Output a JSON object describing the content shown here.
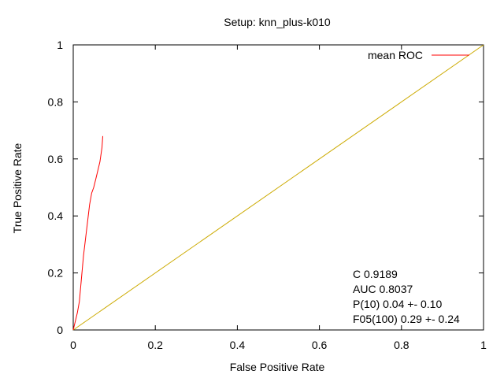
{
  "chart_data": {
    "type": "line",
    "title": "Setup: knn_plus-k010",
    "xlabel": "False Positive Rate",
    "ylabel": "True Positive Rate",
    "xlim": [
      0,
      1
    ],
    "ylim": [
      0,
      1
    ],
    "xticks": [
      "0",
      "0.2",
      "0.4",
      "0.6",
      "0.8",
      "1"
    ],
    "yticks": [
      "0",
      "0.2",
      "0.4",
      "0.6",
      "0.8",
      "1"
    ],
    "grid": false,
    "legend": "top-right",
    "series": [
      {
        "name": "mean ROC",
        "color": "#ff0000",
        "x": [
          0.0,
          0.005,
          0.01,
          0.015,
          0.02,
          0.025,
          0.03,
          0.035,
          0.04,
          0.045,
          0.05,
          0.055,
          0.06,
          0.065,
          0.07,
          0.072
        ],
        "y": [
          0.0,
          0.03,
          0.06,
          0.1,
          0.18,
          0.26,
          0.32,
          0.38,
          0.44,
          0.48,
          0.5,
          0.53,
          0.56,
          0.59,
          0.64,
          0.68
        ]
      },
      {
        "color": "#ccaa00",
        "x": [
          0,
          1
        ],
        "y": [
          0,
          1
        ]
      }
    ],
    "annotations": [
      "C 0.9189",
      "AUC 0.8037",
      "P(10) 0.04 +- 0.10",
      "F05(100) 0.29 +- 0.24"
    ]
  }
}
